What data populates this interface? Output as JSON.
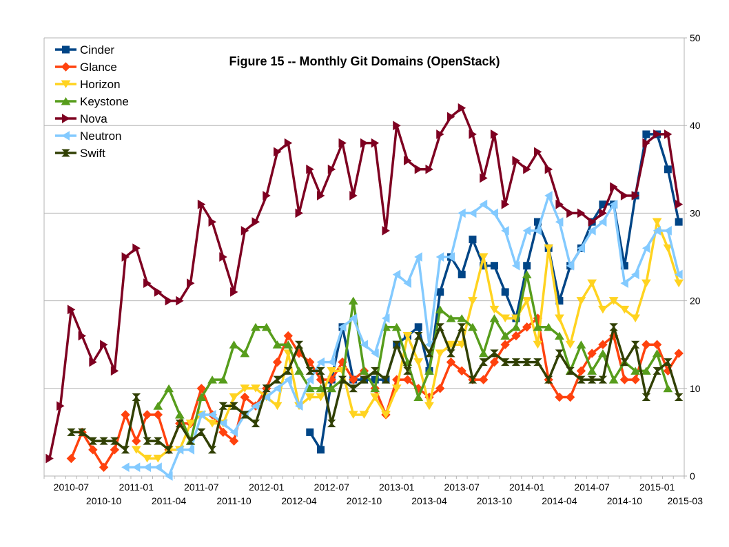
{
  "chart_data": {
    "type": "line",
    "title": "Figure 15 -- Monthly Git Domains (OpenStack)",
    "xlabel": "",
    "ylabel": "",
    "ylim": [
      0,
      50
    ],
    "yticks": [
      0,
      10,
      20,
      30,
      40,
      50
    ],
    "y_axis_side": "right",
    "grid": "horizontal",
    "legend_position": "top-left",
    "x": [
      "2010-05",
      "2010-06",
      "2010-07",
      "2010-08",
      "2010-09",
      "2010-10",
      "2010-11",
      "2010-12",
      "2011-01",
      "2011-02",
      "2011-03",
      "2011-04",
      "2011-05",
      "2011-06",
      "2011-07",
      "2011-08",
      "2011-09",
      "2011-10",
      "2011-11",
      "2011-12",
      "2012-01",
      "2012-02",
      "2012-03",
      "2012-04",
      "2012-05",
      "2012-06",
      "2012-07",
      "2012-08",
      "2012-09",
      "2012-10",
      "2012-11",
      "2012-12",
      "2013-01",
      "2013-02",
      "2013-03",
      "2013-04",
      "2013-05",
      "2013-06",
      "2013-07",
      "2013-08",
      "2013-09",
      "2013-10",
      "2013-11",
      "2013-12",
      "2014-01",
      "2014-02",
      "2014-03",
      "2014-04",
      "2014-05",
      "2014-06",
      "2014-07",
      "2014-08",
      "2014-09",
      "2014-10",
      "2014-11",
      "2014-12",
      "2015-01",
      "2015-02",
      "2015-03"
    ],
    "x_tick_labels_upper": [
      "2010-07",
      "2011-01",
      "2011-07",
      "2012-01",
      "2012-07",
      "2013-01",
      "2013-07",
      "2014-01",
      "2014-07",
      "2015-01"
    ],
    "x_tick_labels_lower": [
      "2010-10",
      "2011-04",
      "2011-10",
      "2012-04",
      "2012-10",
      "2013-04",
      "2013-10",
      "2014-04",
      "2014-10",
      "2015-03"
    ],
    "series": [
      {
        "name": "Cinder",
        "color": "#004586",
        "marker": "square",
        "values": [
          null,
          null,
          null,
          null,
          null,
          null,
          null,
          null,
          null,
          null,
          null,
          null,
          null,
          null,
          null,
          null,
          null,
          null,
          null,
          null,
          null,
          null,
          null,
          null,
          5,
          3,
          11,
          17,
          11,
          11,
          11,
          11,
          15,
          16,
          17,
          12,
          21,
          25,
          23,
          27,
          24,
          24,
          21,
          18,
          24,
          29,
          26,
          20,
          24,
          26,
          29,
          31,
          31,
          24,
          32,
          39,
          39,
          35,
          29
        ]
      },
      {
        "name": "Glance",
        "color": "#ff420e",
        "marker": "diamond",
        "values": [
          null,
          null,
          2,
          5,
          3,
          1,
          3,
          7,
          4,
          7,
          7,
          3,
          6,
          6,
          10,
          7,
          5,
          4,
          9,
          8,
          10,
          13,
          16,
          14,
          13,
          11,
          11,
          13,
          11,
          12,
          10,
          7,
          11,
          11,
          10,
          9,
          10,
          13,
          12,
          11,
          11,
          13,
          15,
          16,
          17,
          18,
          11,
          9,
          9,
          12,
          14,
          15,
          16,
          11,
          11,
          15,
          15,
          12,
          14
        ]
      },
      {
        "name": "Horizon",
        "color": "#ffd320",
        "marker": "triangle-down",
        "values": [
          null,
          null,
          null,
          null,
          null,
          null,
          null,
          null,
          3,
          2,
          2,
          3,
          3,
          6,
          7,
          6,
          6,
          9,
          10,
          10,
          9,
          8,
          14,
          8,
          9,
          9,
          12,
          12,
          7,
          7,
          9,
          7,
          10,
          16,
          13,
          8,
          14,
          15,
          15,
          20,
          25,
          19,
          18,
          18,
          20,
          15,
          26,
          18,
          15,
          20,
          22,
          19,
          20,
          19,
          18,
          22,
          29,
          26,
          22
        ]
      },
      {
        "name": "Keystone",
        "color": "#579d1c",
        "marker": "triangle-up",
        "values": [
          null,
          null,
          null,
          null,
          null,
          null,
          null,
          null,
          null,
          null,
          8,
          10,
          7,
          4,
          9,
          11,
          11,
          15,
          14,
          17,
          17,
          15,
          15,
          12,
          10,
          10,
          10,
          11,
          20,
          12,
          10,
          17,
          17,
          13,
          9,
          12,
          19,
          18,
          18,
          17,
          14,
          18,
          16,
          17,
          23,
          17,
          17,
          16,
          12,
          15,
          12,
          14,
          11,
          13,
          12,
          12,
          14,
          10,
          null
        ]
      },
      {
        "name": "Nova",
        "color": "#7e0021",
        "marker": "triangle-right",
        "values": [
          2,
          8,
          19,
          16,
          13,
          15,
          12,
          25,
          26,
          22,
          21,
          20,
          20,
          22,
          31,
          29,
          25,
          21,
          28,
          29,
          32,
          37,
          38,
          30,
          35,
          32,
          35,
          38,
          32,
          38,
          38,
          28,
          40,
          36,
          35,
          35,
          39,
          41,
          42,
          39,
          34,
          39,
          31,
          36,
          35,
          37,
          35,
          31,
          30,
          30,
          29,
          30,
          33,
          32,
          32,
          38,
          39,
          39,
          31
        ]
      },
      {
        "name": "Neutron",
        "color": "#83caff",
        "marker": "triangle-left",
        "values": [
          null,
          null,
          null,
          null,
          null,
          null,
          null,
          1,
          1,
          1,
          1,
          0,
          3,
          3,
          7,
          7,
          6,
          5,
          7,
          8,
          9,
          10,
          11,
          8,
          11,
          13,
          13,
          17,
          18,
          15,
          14,
          18,
          23,
          22,
          25,
          15,
          25,
          25,
          30,
          30,
          31,
          30,
          28,
          24,
          28,
          28,
          32,
          29,
          24,
          26,
          28,
          29,
          31,
          22,
          23,
          26,
          28,
          28,
          23
        ]
      },
      {
        "name": "Swift",
        "color": "#314004",
        "marker": "x",
        "values": [
          null,
          null,
          5,
          5,
          4,
          4,
          4,
          3,
          9,
          4,
          4,
          3,
          6,
          4,
          5,
          3,
          8,
          8,
          7,
          6,
          10,
          11,
          12,
          15,
          12,
          12,
          6,
          11,
          10,
          11,
          12,
          11,
          15,
          12,
          16,
          14,
          17,
          14,
          17,
          11,
          13,
          14,
          13,
          13,
          13,
          13,
          11,
          14,
          12,
          11,
          11,
          11,
          17,
          13,
          15,
          9,
          12,
          13,
          9
        ]
      }
    ]
  }
}
